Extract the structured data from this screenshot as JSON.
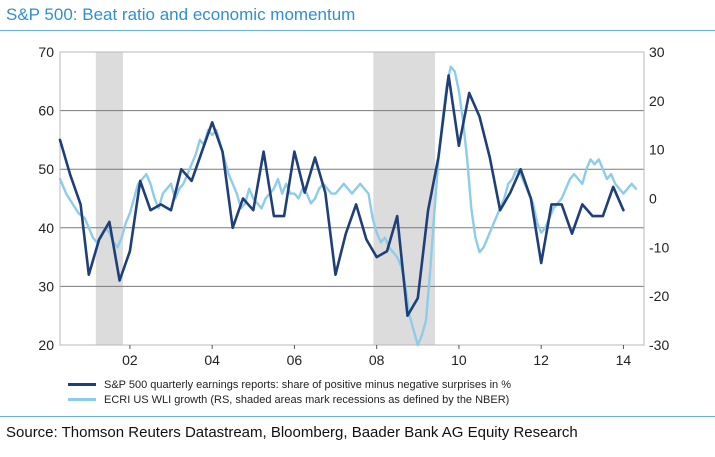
{
  "chart_data": {
    "type": "line",
    "title": "S&P 500: Beat ratio and economic momentum",
    "source": "Source: Thomson Reuters Datastream, Bloomberg, Baader Bank AG Equity Research",
    "x_range": [
      2000.3,
      2014.5
    ],
    "x_ticks": [
      {
        "value": 2002,
        "label": "02"
      },
      {
        "value": 2004,
        "label": "04"
      },
      {
        "value": 2006,
        "label": "06"
      },
      {
        "value": 2008,
        "label": "08"
      },
      {
        "value": 2010,
        "label": "10"
      },
      {
        "value": 2012,
        "label": "12"
      },
      {
        "value": 2014,
        "label": "14"
      }
    ],
    "y_left": {
      "range": [
        20,
        70
      ],
      "ticks": [
        20,
        30,
        40,
        50,
        60,
        70
      ]
    },
    "y_right": {
      "range": [
        -30,
        30
      ],
      "ticks": [
        -30,
        -20,
        -10,
        0,
        10,
        20,
        30
      ]
    },
    "recessions": [
      {
        "start": 2001.17,
        "end": 2001.83
      },
      {
        "start": 2007.92,
        "end": 2009.42
      }
    ],
    "series": [
      {
        "name": "S&P 500 quarterly earnings reports: share of positive minus negative surprises in %",
        "axis": "left",
        "color": "#1f3f7a",
        "x": [
          2000.3,
          2000.55,
          2000.8,
          2001.0,
          2001.25,
          2001.5,
          2001.75,
          2002.0,
          2002.25,
          2002.5,
          2002.75,
          2003.0,
          2003.25,
          2003.5,
          2003.75,
          2004.0,
          2004.25,
          2004.5,
          2004.75,
          2005.0,
          2005.25,
          2005.5,
          2005.75,
          2006.0,
          2006.25,
          2006.5,
          2006.75,
          2007.0,
          2007.25,
          2007.5,
          2007.75,
          2008.0,
          2008.25,
          2008.5,
          2008.75,
          2009.0,
          2009.25,
          2009.5,
          2009.75,
          2010.0,
          2010.25,
          2010.5,
          2010.75,
          2011.0,
          2011.25,
          2011.5,
          2011.75,
          2012.0,
          2012.25,
          2012.5,
          2012.75,
          2013.0,
          2013.25,
          2013.5,
          2013.75,
          2014.0
        ],
        "values": [
          55,
          49,
          44,
          32,
          38,
          41,
          31,
          36,
          48,
          43,
          44,
          43,
          50,
          48,
          53,
          58,
          53,
          40,
          45,
          43,
          53,
          42,
          42,
          53,
          46,
          52,
          46,
          32,
          39,
          44,
          38,
          35,
          36,
          42,
          25,
          28,
          43,
          52,
          66,
          54,
          63,
          59,
          52,
          43,
          46,
          50,
          45,
          34,
          44,
          44,
          39,
          44,
          42,
          42,
          47,
          43
        ]
      },
      {
        "name": "ECRI US WLI growth (RS, shaded areas mark recessions as defined by the NBER)",
        "axis": "right",
        "color": "#8dccea",
        "x": [
          2000.3,
          2000.45,
          2000.6,
          2000.75,
          2000.9,
          2001.0,
          2001.1,
          2001.2,
          2001.3,
          2001.4,
          2001.5,
          2001.6,
          2001.7,
          2001.8,
          2001.9,
          2002.0,
          2002.1,
          2002.2,
          2002.3,
          2002.4,
          2002.5,
          2002.6,
          2002.7,
          2002.8,
          2002.9,
          2003.0,
          2003.1,
          2003.2,
          2003.3,
          2003.4,
          2003.5,
          2003.6,
          2003.7,
          2003.8,
          2003.9,
          2004.0,
          2004.1,
          2004.2,
          2004.3,
          2004.4,
          2004.5,
          2004.6,
          2004.7,
          2004.8,
          2004.9,
          2005.0,
          2005.1,
          2005.2,
          2005.3,
          2005.4,
          2005.5,
          2005.6,
          2005.7,
          2005.8,
          2005.9,
          2006.0,
          2006.1,
          2006.2,
          2006.3,
          2006.4,
          2006.5,
          2006.6,
          2006.7,
          2006.8,
          2006.9,
          2007.0,
          2007.1,
          2007.2,
          2007.3,
          2007.4,
          2007.5,
          2007.6,
          2007.7,
          2007.8,
          2007.9,
          2008.0,
          2008.1,
          2008.2,
          2008.3,
          2008.4,
          2008.5,
          2008.6,
          2008.7,
          2008.8,
          2008.9,
          2009.0,
          2009.1,
          2009.2,
          2009.3,
          2009.4,
          2009.5,
          2009.6,
          2009.7,
          2009.8,
          2009.9,
          2010.0,
          2010.1,
          2010.2,
          2010.3,
          2010.4,
          2010.5,
          2010.6,
          2010.7,
          2010.8,
          2010.9,
          2011.0,
          2011.1,
          2011.2,
          2011.3,
          2011.4,
          2011.5,
          2011.6,
          2011.7,
          2011.8,
          2011.9,
          2012.0,
          2012.1,
          2012.2,
          2012.3,
          2012.4,
          2012.5,
          2012.6,
          2012.7,
          2012.8,
          2012.9,
          2013.0,
          2013.1,
          2013.2,
          2013.3,
          2013.4,
          2013.5,
          2013.6,
          2013.7,
          2013.8,
          2013.9,
          2014.0,
          2014.1,
          2014.2,
          2014.3
        ],
        "values": [
          4,
          1,
          -1,
          -3,
          -4,
          -6,
          -8,
          -9,
          -8,
          -6,
          -7,
          -9,
          -10,
          -8,
          -5,
          -3,
          0,
          3,
          4,
          5,
          3,
          0,
          -2,
          1,
          2,
          3,
          0,
          2,
          3,
          5,
          7,
          9,
          12,
          11,
          14,
          13,
          14,
          11,
          8,
          5,
          3,
          1,
          -2,
          -1,
          2,
          0,
          -1,
          -2,
          0,
          1,
          2,
          4,
          1,
          3,
          1,
          1,
          0,
          2,
          1,
          -1,
          0,
          2,
          3,
          2,
          1,
          1,
          2,
          3,
          2,
          1,
          2,
          3,
          2,
          1,
          -4,
          -7,
          -9,
          -8,
          -10,
          -11,
          -12,
          -14,
          -18,
          -24,
          -27,
          -30,
          -28,
          -25,
          -15,
          -3,
          8,
          16,
          23,
          27,
          26,
          22,
          16,
          8,
          -2,
          -8,
          -11,
          -10,
          -8,
          -6,
          -4,
          -2,
          0,
          3,
          4,
          6,
          5,
          3,
          1,
          -1,
          -5,
          -7,
          -6,
          -4,
          -2,
          -1,
          0,
          2,
          4,
          5,
          4,
          3,
          6,
          8,
          7,
          8,
          6,
          4,
          5,
          3,
          2,
          1,
          2,
          3,
          2
        ]
      }
    ]
  }
}
